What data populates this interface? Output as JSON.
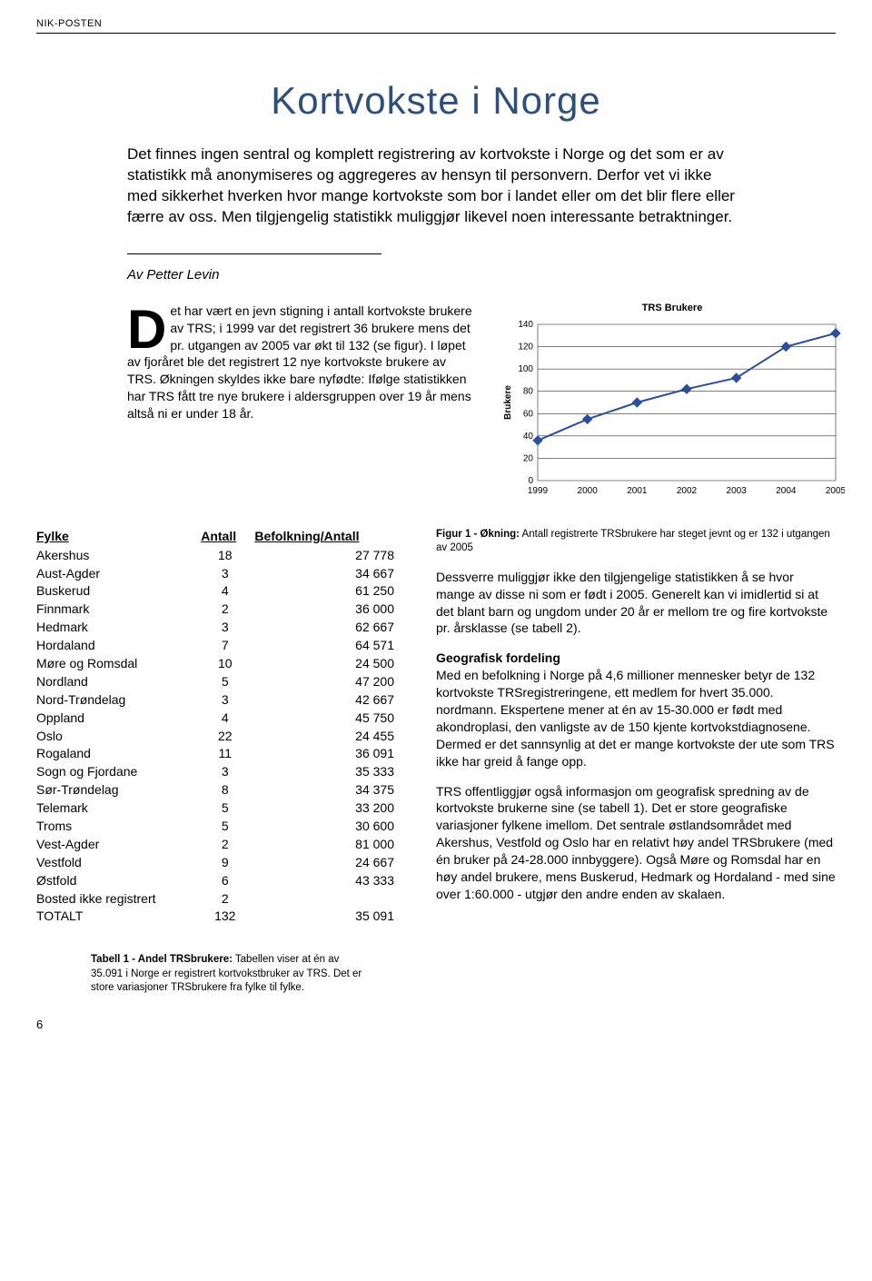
{
  "header": {
    "publication": "NIK-POSTEN"
  },
  "title": "Kortvokste i Norge",
  "intro": "Det finnes ingen sentral og komplett registrering av kortvokste i Norge og det som er av statistikk må anonymiseres og aggregeres av hensyn til personvern. Derfor vet vi ikke med sikkerhet hverken hvor mange kortvokste som bor i landet eller om det blir flere eller færre av oss. Men tilgjengelig statistikk muliggjør likevel noen interessante betraktninger.",
  "byline": "Av Petter Levin",
  "dropcap_para": "et har vært en jevn stigning i antall kortvokste brukere av TRS; i 1999 var det registrert 36 brukere mens det pr. utgangen av 2005 var økt til 132 (se figur). I løpet av fjoråret ble det registrert 12 nye kortvokste brukere av TRS. Økningen skyldes ikke bare nyfødte: Ifølge statistikken har TRS fått tre nye brukere i aldersgruppen over 19 år mens altså ni er under 18 år.",
  "dropcap_letter": "D",
  "chart": {
    "title": "TRS Brukere",
    "type": "line",
    "x_values": [
      1999,
      2000,
      2001,
      2002,
      2003,
      2004,
      2005
    ],
    "y_values": [
      36,
      55,
      70,
      82,
      92,
      120,
      132
    ],
    "ylabel": "Brukere",
    "ylim": [
      0,
      140
    ],
    "ytick_step": 20,
    "xtick_labels": [
      "1999",
      "2000",
      "2001",
      "2002",
      "2003",
      "2004",
      "2005"
    ],
    "line_color": "#2d4f9a",
    "marker_color": "#2d4f9a",
    "marker_type": "diamond",
    "marker_size": 5,
    "line_width": 2,
    "background_color": "#ffffff",
    "grid_color": "#000000",
    "plot_border_color": "#808080",
    "font_size": 10
  },
  "fig_caption_bold": "Figur 1 - Økning:",
  "fig_caption_rest": " Antall registrerte TRSbrukere har steget jevnt og er 132 i utgangen av 2005",
  "table": {
    "columns": [
      "Fylke",
      "Antall",
      "Befolkning/Antall"
    ],
    "rows": [
      [
        "Akershus",
        "18",
        "27 778"
      ],
      [
        "Aust-Agder",
        "3",
        "34 667"
      ],
      [
        "Buskerud",
        "4",
        "61 250"
      ],
      [
        "Finnmark",
        "2",
        "36 000"
      ],
      [
        "Hedmark",
        "3",
        "62 667"
      ],
      [
        "Hordaland",
        "7",
        "64 571"
      ],
      [
        "Møre og Romsdal",
        "10",
        "24 500"
      ],
      [
        "Nordland",
        "5",
        "47 200"
      ],
      [
        "Nord-Trøndelag",
        "3",
        "42 667"
      ],
      [
        "Oppland",
        "4",
        "45 750"
      ],
      [
        "Oslo",
        "22",
        "24 455"
      ],
      [
        "Rogaland",
        "11",
        "36 091"
      ],
      [
        "Sogn og Fjordane",
        "3",
        "35 333"
      ],
      [
        "Sør-Trøndelag",
        "8",
        "34 375"
      ],
      [
        "Telemark",
        "5",
        "33 200"
      ],
      [
        "Troms",
        "5",
        "30 600"
      ],
      [
        "Vest-Agder",
        "2",
        "81 000"
      ],
      [
        "Vestfold",
        "9",
        "24 667"
      ],
      [
        "Østfold",
        "6",
        "43 333"
      ],
      [
        "Bosted ikke registrert",
        "2",
        ""
      ],
      [
        "TOTALT",
        "132",
        "35 091"
      ]
    ]
  },
  "table_caption_bold": "Tabell 1 - Andel TRSbrukere:",
  "table_caption_rest": " Tabellen viser at én av 35.091 i Norge er registrert kortvokstbruker av TRS. Det er store variasjoner TRSbrukere fra fylke til fylke.",
  "body": {
    "p1": "Dessverre muliggjør ikke den tilgjengelige statistikken å se hvor mange av disse ni som er født i 2005. Generelt kan vi imidlertid si at det blant barn og ungdom under 20 år er mellom tre og fire kortvokste pr. årsklasse (se tabell 2).",
    "subhead": "Geografisk fordeling",
    "p2": "Med en befolkning i Norge på 4,6 millioner mennesker betyr de 132 kortvokste TRSregistreringene, ett medlem for hvert 35.000. nordmann. Ekspertene mener at én av 15-30.000 er født med akondroplasi, den vanligste av de 150 kjente kortvokstdiagnosene. Dermed er det sannsynlig at det er mange kortvokste der ute som TRS ikke har greid å fange opp.",
    "p3": "TRS offentliggjør også informasjon om geografisk spredning av de kortvokste brukerne sine (se tabell 1). Det er store geografiske variasjoner fylkene imellom. Det sentrale østlandsområdet med Akershus, Vestfold og Oslo har en relativt høy andel TRSbrukere (med én bruker på 24-28.000 innbyggere). Også Møre og Romsdal har en høy andel brukere, mens Buskerud, Hedmark og Hordaland - med sine over 1:60.000 - utgjør den andre enden av skalaen."
  },
  "page_number": "6"
}
